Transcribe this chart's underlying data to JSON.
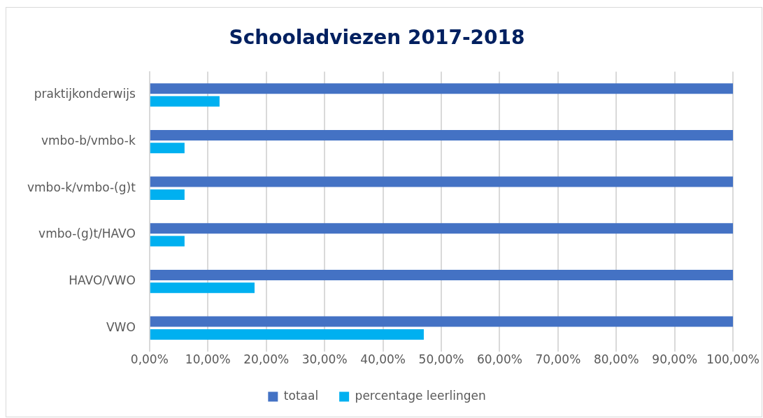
{
  "chart_data": {
    "type": "bar",
    "orientation": "horizontal",
    "title": "Schooladviezen 2017-2018",
    "categories": [
      "praktijkonderwijs",
      "vmbo-b/vmbo-k",
      "vmbo-k/vmbo-(g)t",
      "vmbo-(g)t/HAVO",
      "HAVO/VWO",
      "VWO"
    ],
    "series": [
      {
        "name": "totaal",
        "color": "#4472c4",
        "values": [
          100,
          100,
          100,
          100,
          100,
          100
        ]
      },
      {
        "name": "percentage leerlingen",
        "color": "#00b0f0",
        "values": [
          12,
          6,
          6,
          6,
          18,
          47
        ]
      }
    ],
    "xlim": [
      0,
      100
    ],
    "xticks": [
      {
        "value": 0,
        "label": "0,00%"
      },
      {
        "value": 10,
        "label": "10,00%"
      },
      {
        "value": 20,
        "label": "20,00%"
      },
      {
        "value": 30,
        "label": "30,00%"
      },
      {
        "value": 40,
        "label": "40,00%"
      },
      {
        "value": 50,
        "label": "50,00%"
      },
      {
        "value": 60,
        "label": "60,00%"
      },
      {
        "value": 70,
        "label": "70,00%"
      },
      {
        "value": 80,
        "label": "80,00%"
      },
      {
        "value": 90,
        "label": "90,00%"
      },
      {
        "value": 100,
        "label": "100,00%"
      }
    ],
    "grid": "x",
    "legend": "bottom"
  }
}
